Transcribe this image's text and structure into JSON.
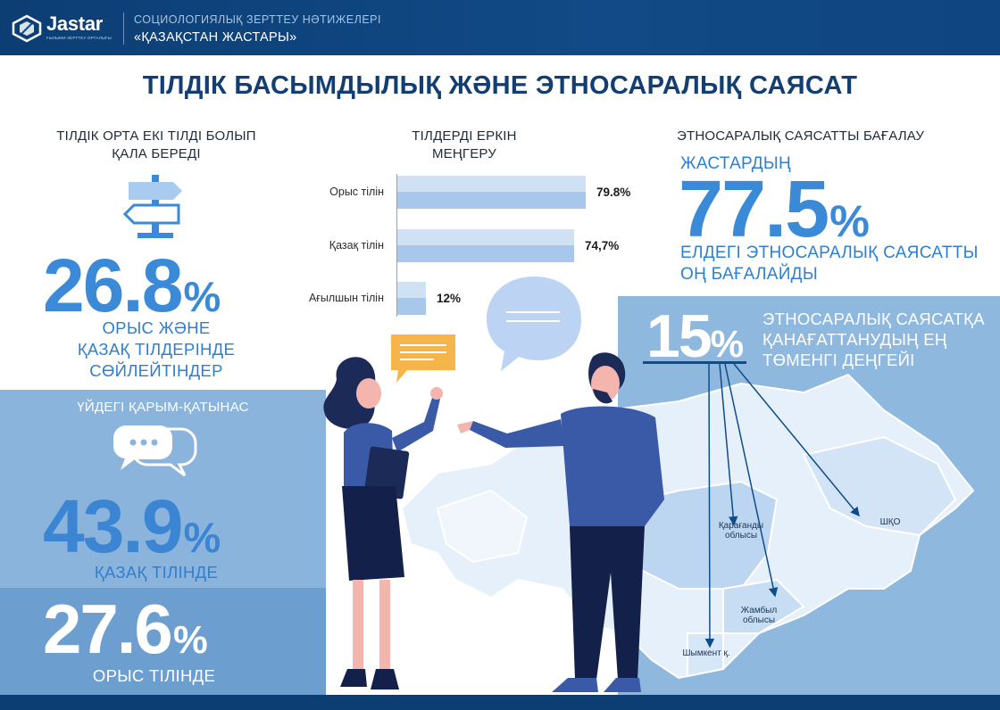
{
  "header": {
    "logo_text": "Jastar",
    "logo_subtext": "ҒЫЛЫМИ-ЗЕРТТЕУ ОРТАЛЫҒЫ",
    "subtitle_line1": "СОЦИОЛОГИЯЛЫҚ ЗЕРТТЕУ НӘТИЖЕЛЕРІ",
    "subtitle_line2": "«ҚАЗАҚСТАН ЖАСТАРЫ»"
  },
  "main_title": "ТІЛДІК БАСЫМДЫЛЫҚ ЖӘНЕ ЭТНОСАРАЛЫҚ САЯСАТ",
  "left": {
    "title_line1": "ТІЛДІК ОРТА ЕКІ ТІЛДІ БОЛЫП",
    "title_line2": "ҚАЛА БЕРЕДІ",
    "bilingual_value": "26.8",
    "pct": "%",
    "caption_line1": "ОРЫС ЖӘНЕ",
    "caption_line2": "ҚАЗАҚ ТІЛДЕРІНДЕ",
    "caption_line3": "СӨЙЛЕЙТІНДЕР",
    "home_title": "ҮЙДЕГІ ҚАРЫМ-ҚАТЫНАС",
    "kazakh_value": "43.9",
    "kazakh_caption": "ҚАЗАҚ ТІЛІНДЕ",
    "russian_value": "27.6",
    "russian_caption": "ОРЫС ТІЛІНДЕ"
  },
  "middle": {
    "title_line1": "ТІЛДЕРДІ ЕРКІН",
    "title_line2": "МЕҢГЕРУ"
  },
  "chart_data": {
    "type": "bar",
    "title": "ТІЛДЕРДІ ЕРКІН МЕҢГЕРУ",
    "categories": [
      "Орыс тілін",
      "Қазақ тілін",
      "Ағылшын тілін"
    ],
    "values": [
      79.8,
      74.7,
      12
    ],
    "value_labels": [
      "79.8%",
      "74,7%",
      "12%"
    ],
    "xlim": [
      0,
      100
    ],
    "orientation": "horizontal",
    "colors": [
      "#cfe1f3",
      "#a7c8eb"
    ]
  },
  "right": {
    "title": "ЭТНОСАРАЛЫҚ САЯСАТТЫ БАҒАЛАУ",
    "youth_label": "ЖАСТАРДЫҢ",
    "positive_value": "77.5",
    "pct": "%",
    "caption_line1": "ЕЛДЕГІ ЭТНОСАРАЛЫҚ САЯСАТТЫ",
    "caption_line2": "ОҢ БАҒАЛАЙДЫ",
    "low_value": "15",
    "low_line1": "ЭТНОСАРАЛЫҚ САЯСАТҚА",
    "low_line2": "ҚАНАҒАТТАНУДЫҢ ЕҢ",
    "low_line3": "ТӨМЕНГІ ДЕҢГЕЙІ"
  },
  "map": {
    "regions": [
      {
        "line1": "Қарағанды",
        "line2": "облысы"
      },
      {
        "line1": "ШҚО",
        "line2": ""
      },
      {
        "line1": "Жамбыл",
        "line2": "облысы"
      },
      {
        "line1": "Шымкент қ.",
        "line2": ""
      }
    ]
  },
  "colors": {
    "navy": "#0c3e74",
    "accent_blue": "#3b8ad8",
    "panel_light": "#8bb4dd",
    "panel_dark": "#6d9ed0"
  },
  "icons": [
    "jastar-logo-icon",
    "signpost-icon",
    "chat-bubbles-icon"
  ]
}
